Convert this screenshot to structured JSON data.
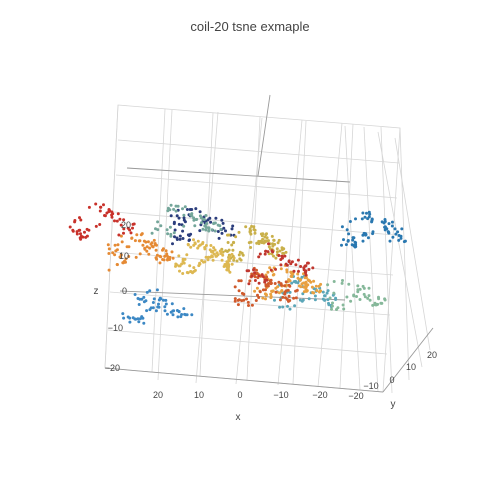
{
  "chart_data": {
    "type": "scatter",
    "title": "coil-20 tsne exmaple",
    "xlabel": "x",
    "ylabel": "y",
    "zlabel": "z",
    "x_ticks": [
      "20",
      "10",
      "0",
      "−10",
      "−20"
    ],
    "y_ticks": [
      "−20",
      "−10",
      "0",
      "10",
      "20"
    ],
    "z_ticks": [
      "20",
      "10",
      "0",
      "−10",
      "−20"
    ],
    "series": [
      {
        "color": "#2b3d7c",
        "cluster_center": [
          -5,
          -30,
          28
        ],
        "n": 55
      },
      {
        "color": "#2a78b0",
        "cluster_center": [
          -28,
          10,
          15
        ],
        "n": 70
      },
      {
        "color": "#3c88c4",
        "cluster_center": [
          22,
          4,
          -8
        ],
        "n": 60
      },
      {
        "color": "#5ba6b8",
        "cluster_center": [
          -22,
          -12,
          4
        ],
        "n": 55
      },
      {
        "color": "#74a69a",
        "cluster_center": [
          3,
          -22,
          26
        ],
        "n": 55
      },
      {
        "color": "#86b89a",
        "cluster_center": [
          -18,
          22,
          -8
        ],
        "n": 45
      },
      {
        "color": "#c9b04a",
        "cluster_center": [
          -5,
          -3,
          14
        ],
        "n": 95
      },
      {
        "color": "#ddb852",
        "cluster_center": [
          8,
          0,
          8
        ],
        "n": 90
      },
      {
        "color": "#e8a040",
        "cluster_center": [
          -8,
          8,
          0
        ],
        "n": 90
      },
      {
        "color": "#e58a34",
        "cluster_center": [
          20,
          -8,
          12
        ],
        "n": 75
      },
      {
        "color": "#d05a2c",
        "cluster_center": [
          2,
          18,
          -6
        ],
        "n": 70
      },
      {
        "color": "#c8312a",
        "cluster_center": [
          24,
          -20,
          24
        ],
        "n": 55
      },
      {
        "color": "#c0362e",
        "cluster_center": [
          2,
          26,
          -2
        ],
        "n": 55
      }
    ]
  }
}
